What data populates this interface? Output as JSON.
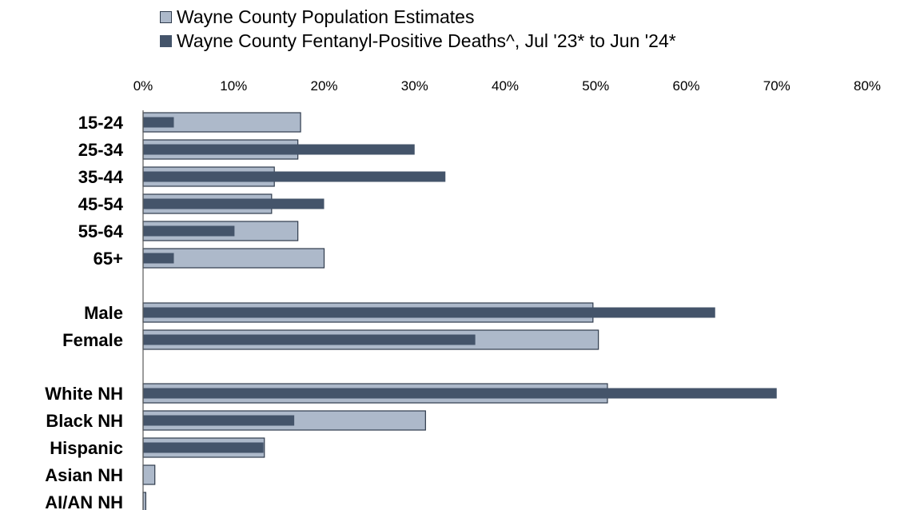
{
  "chart_data": {
    "type": "bar",
    "orientation": "horizontal",
    "title": "",
    "xlabel": "",
    "ylabel": "",
    "xlim": [
      0,
      80
    ],
    "x_ticks": [
      "0%",
      "10%",
      "20%",
      "30%",
      "40%",
      "50%",
      "60%",
      "70%",
      "80%"
    ],
    "legend_position": "top",
    "grid": false,
    "categories": [
      "15-24",
      "25-34",
      "35-44",
      "45-54",
      "55-64",
      "65+",
      "Male",
      "Female",
      "White NH",
      "Black NH",
      "Hispanic",
      "Asian NH",
      "AI/AN NH"
    ],
    "series": [
      {
        "name": "Wayne County Population Estimates",
        "color": "#adb9ca",
        "values": [
          17.4,
          17.1,
          14.5,
          14.2,
          17.1,
          20.0,
          49.7,
          50.3,
          51.3,
          31.2,
          13.4,
          1.3,
          0.3
        ]
      },
      {
        "name": "Wayne County Fentanyl-Positive Deaths^, Jul '23* to Jun '24*",
        "color": "#44546a",
        "values": [
          3.4,
          30.0,
          33.4,
          20.0,
          10.1,
          3.4,
          63.2,
          36.7,
          70.0,
          16.7,
          13.3,
          0.0,
          0.0
        ]
      }
    ]
  }
}
